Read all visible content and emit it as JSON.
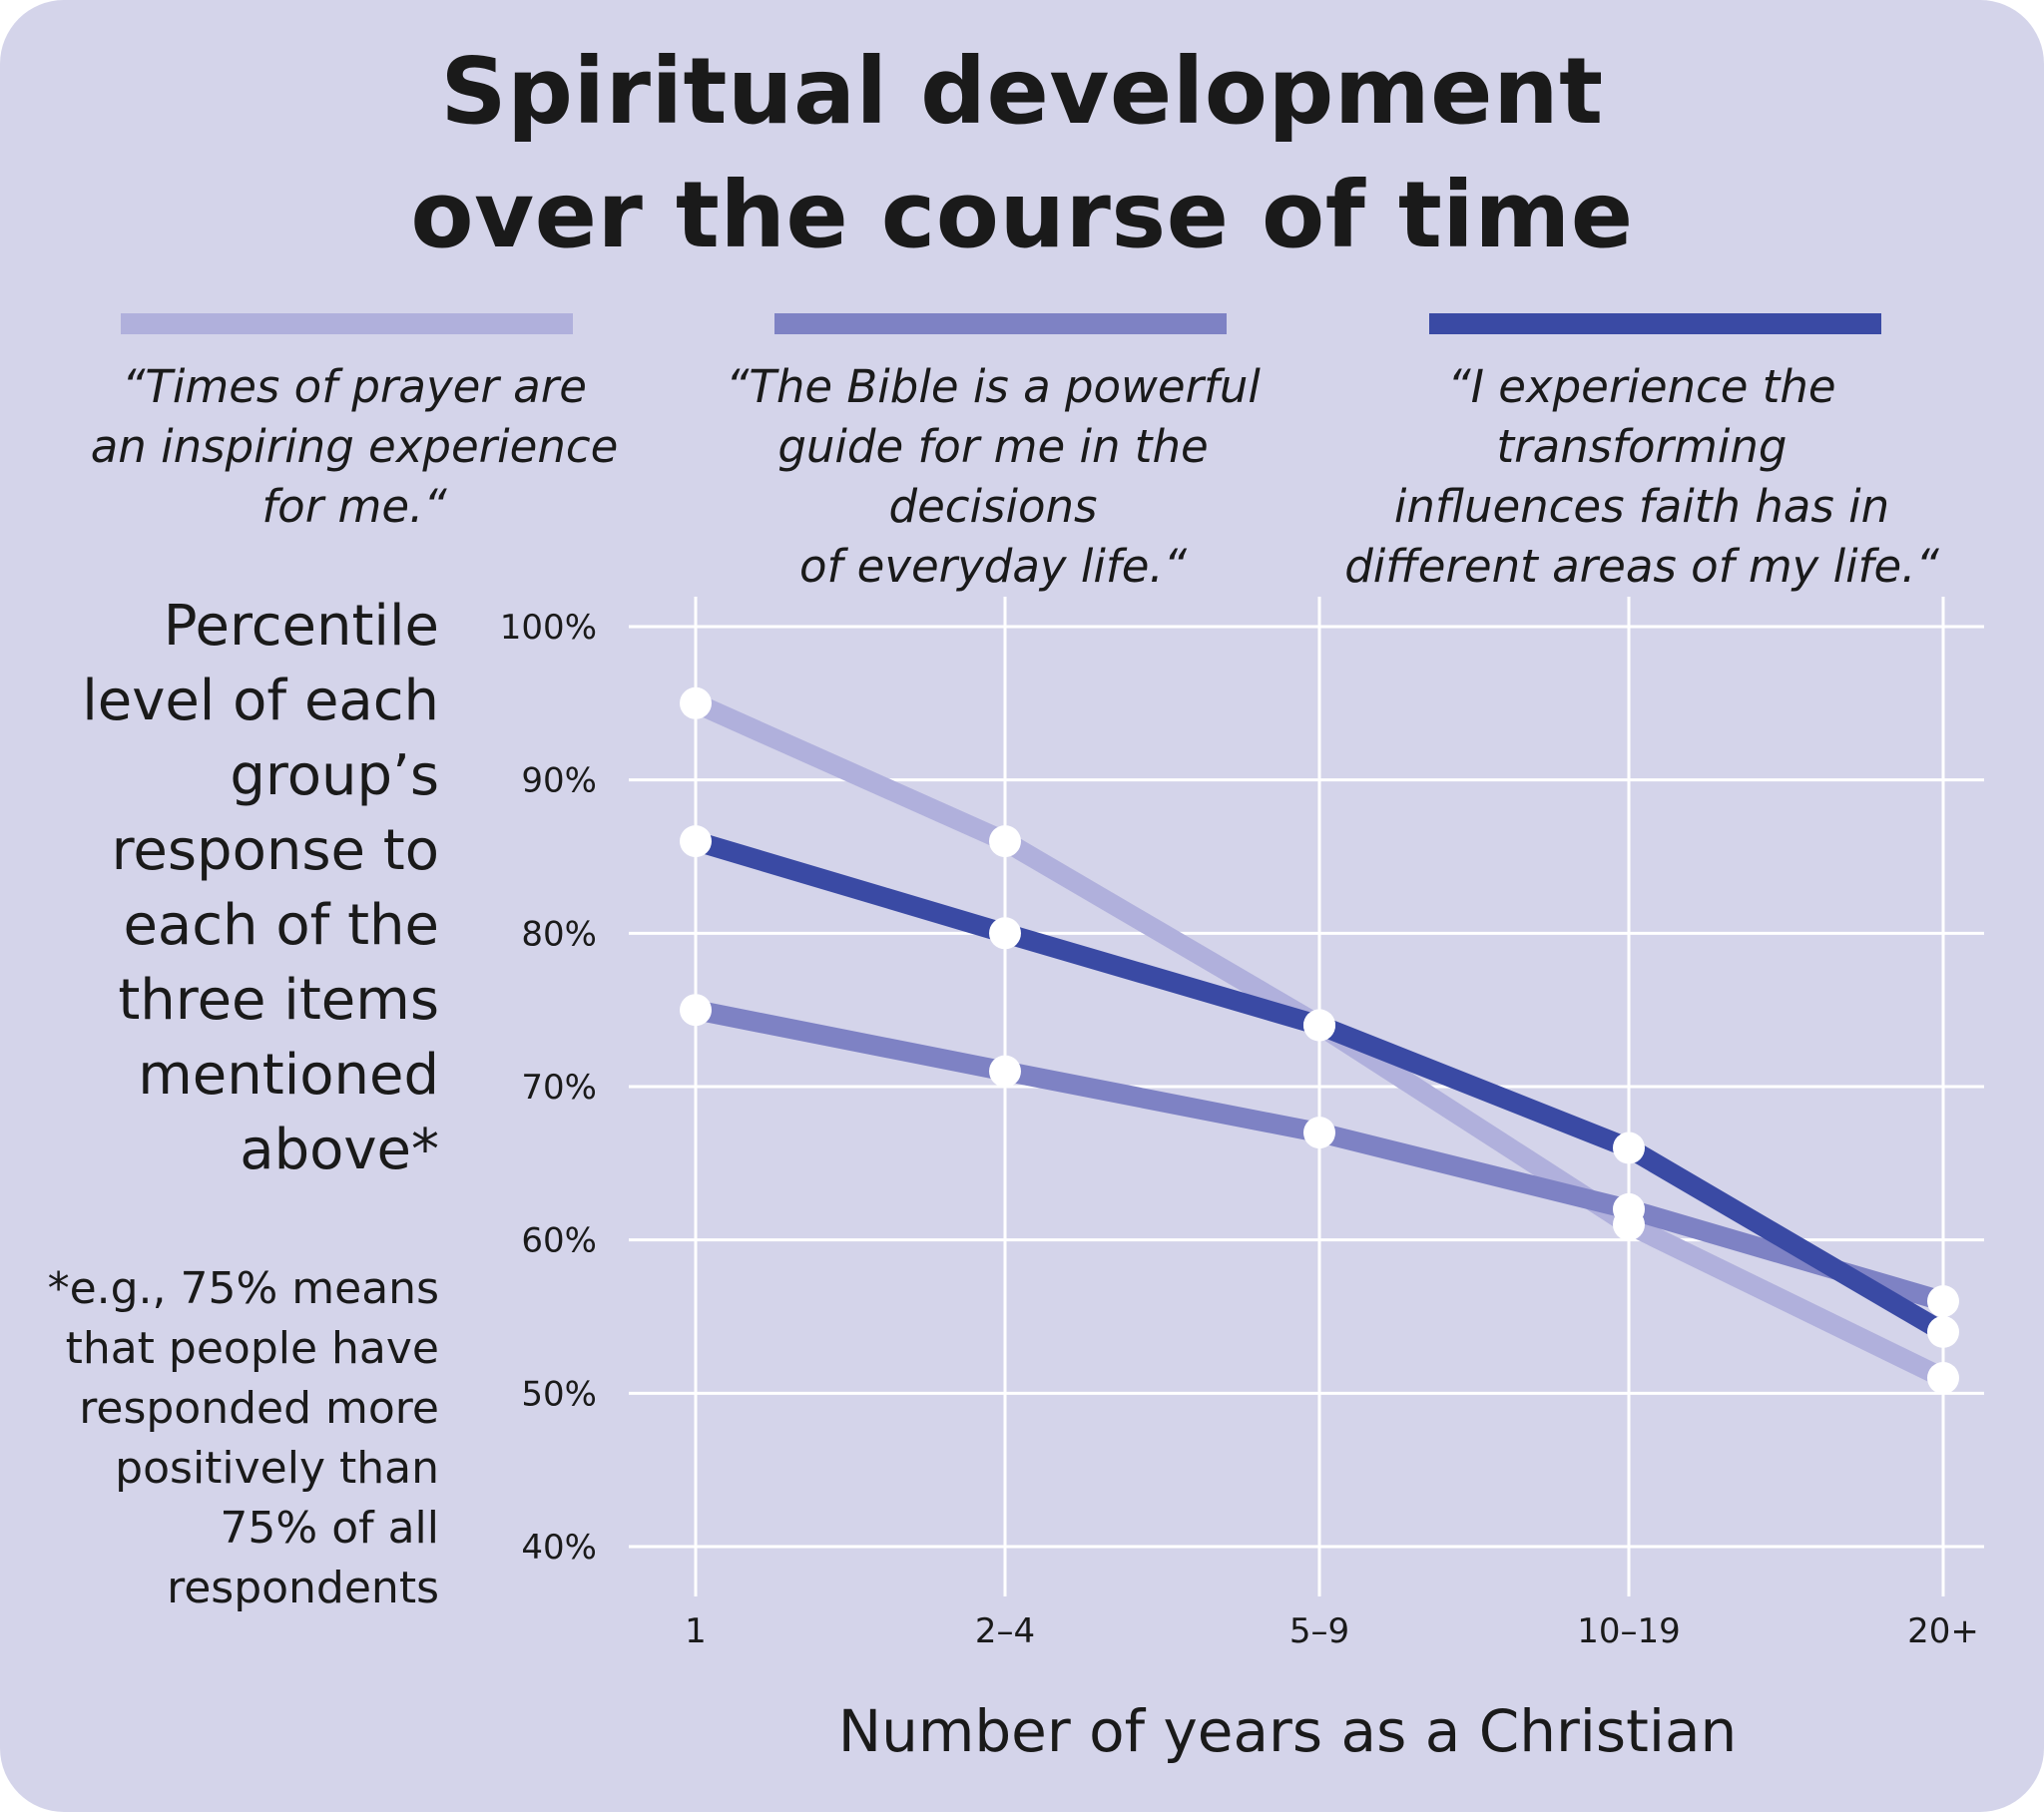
{
  "title_lines": [
    "Spiritual development",
    "over the course of time"
  ],
  "legend": [
    {
      "color": "#b0b0dc",
      "lines": [
        "“Times of prayer are",
        "an inspiring experience",
        "for me.“"
      ]
    },
    {
      "color": "#7e82c4",
      "lines": [
        "“The Bible is a powerful",
        "guide for me in the decisions",
        "of everyday life.“"
      ]
    },
    {
      "color": "#3a4aa4",
      "lines": [
        "“I experience the transforming",
        "influences faith has in",
        "different areas of my life.“"
      ]
    }
  ],
  "ylabel_lines": [
    "Percentile",
    "level of each",
    "group’s",
    "response to",
    "each of the",
    "three items",
    "mentioned",
    "above*"
  ],
  "footnote_lines": [
    "*e.g., 75% means",
    "that people have",
    "responded more",
    "positively than",
    "75% of all",
    "respondents"
  ],
  "colors": {
    "background": "#d4d4ea",
    "grid": "#ffffff",
    "marker": "#ffffff"
  },
  "chart_data": {
    "type": "line",
    "title": "Spiritual development over the course of time",
    "xlabel": "Number of years as a Christian",
    "ylabel": "Percentile level of each group’s response to each of the three items mentioned above*",
    "categories": [
      "1",
      "2–4",
      "5–9",
      "10–19",
      "20+"
    ],
    "ylim": [
      40,
      100
    ],
    "yticks": [
      100,
      90,
      80,
      70,
      60,
      50,
      40
    ],
    "ytick_labels": [
      "100%",
      "90%",
      "80%",
      "70%",
      "60%",
      "50%",
      "40%"
    ],
    "grid": true,
    "series": [
      {
        "name": "“Times of prayer are an inspiring experience for me.“",
        "color": "#b0b0dc",
        "values": [
          95,
          86,
          74,
          61,
          51
        ]
      },
      {
        "name": "“The Bible is a powerful guide for me in the decisions of everyday life.“",
        "color": "#7e82c4",
        "values": [
          75,
          71,
          67,
          62,
          56
        ]
      },
      {
        "name": "“I experience the transforming influences faith has in different areas of my life.“",
        "color": "#3a4aa4",
        "values": [
          86,
          80,
          74,
          66,
          54
        ]
      }
    ]
  }
}
